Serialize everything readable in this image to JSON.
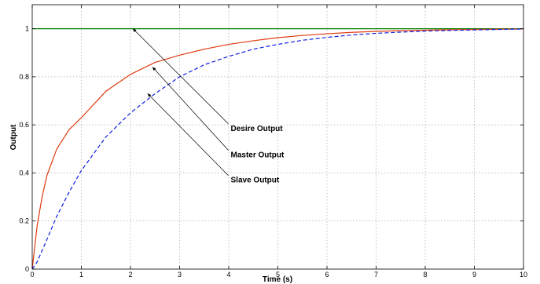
{
  "chart_data": {
    "type": "line",
    "xlabel": "Time (s)",
    "ylabel": "Output",
    "xlim": [
      0,
      10
    ],
    "ylim": [
      0,
      1.1
    ],
    "x_ticks": [
      0,
      1,
      2,
      3,
      4,
      5,
      6,
      7,
      8,
      9,
      10
    ],
    "y_ticks": [
      0,
      0.2,
      0.4,
      0.6,
      0.8,
      1
    ],
    "x_tick_labels": [
      "0",
      "1",
      "2",
      "3",
      "4",
      "5",
      "6",
      "7",
      "8",
      "9",
      "10"
    ],
    "y_tick_labels": [
      "0",
      "0.2",
      "0.4",
      "0.6",
      "0.8",
      "1"
    ],
    "grid": true,
    "series": [
      {
        "name": "Desire Output",
        "color": "#008000",
        "style": "solid",
        "x": [
          0,
          10
        ],
        "y": [
          1,
          1
        ]
      },
      {
        "name": "Master Output",
        "color": "#e03a10",
        "style": "solid",
        "x": [
          0,
          0.1,
          0.2,
          0.3,
          0.5,
          0.75,
          1,
          1.5,
          2,
          2.5,
          3,
          3.5,
          4,
          4.5,
          5,
          5.5,
          6,
          6.5,
          7,
          7.5,
          8,
          8.5,
          9,
          9.5,
          10
        ],
        "y": [
          0,
          0.18,
          0.3,
          0.39,
          0.5,
          0.58,
          0.63,
          0.74,
          0.81,
          0.86,
          0.89,
          0.915,
          0.935,
          0.95,
          0.963,
          0.972,
          0.979,
          0.985,
          0.989,
          0.992,
          0.994,
          0.996,
          0.997,
          0.998,
          0.999
        ]
      },
      {
        "name": "Slave Output",
        "color": "#1020e0",
        "style": "dashed",
        "x": [
          0,
          0.1,
          0.25,
          0.5,
          0.75,
          1,
          1.5,
          2,
          2.5,
          3,
          3.5,
          4,
          4.5,
          5,
          5.5,
          6,
          6.5,
          7,
          7.5,
          8,
          8.5,
          9,
          9.5,
          10
        ],
        "y": [
          0,
          0.03,
          0.1,
          0.22,
          0.32,
          0.41,
          0.55,
          0.65,
          0.73,
          0.8,
          0.85,
          0.885,
          0.915,
          0.935,
          0.952,
          0.964,
          0.974,
          0.981,
          0.986,
          0.99,
          0.993,
          0.995,
          0.997,
          0.999
        ]
      }
    ],
    "annotations": [
      {
        "text": "Desire Output",
        "series": "Desire Output",
        "text_x": 4.04,
        "text_y": 0.575,
        "target_x": 2.05,
        "target_y": 1.0
      },
      {
        "text": "Master Output",
        "series": "Master Output",
        "text_x": 4.04,
        "text_y": 0.465,
        "target_x": 2.45,
        "target_y": 0.84
      },
      {
        "text": "Slave Output",
        "series": "Slave Output",
        "text_x": 4.04,
        "text_y": 0.36,
        "target_x": 2.35,
        "target_y": 0.73
      }
    ]
  }
}
